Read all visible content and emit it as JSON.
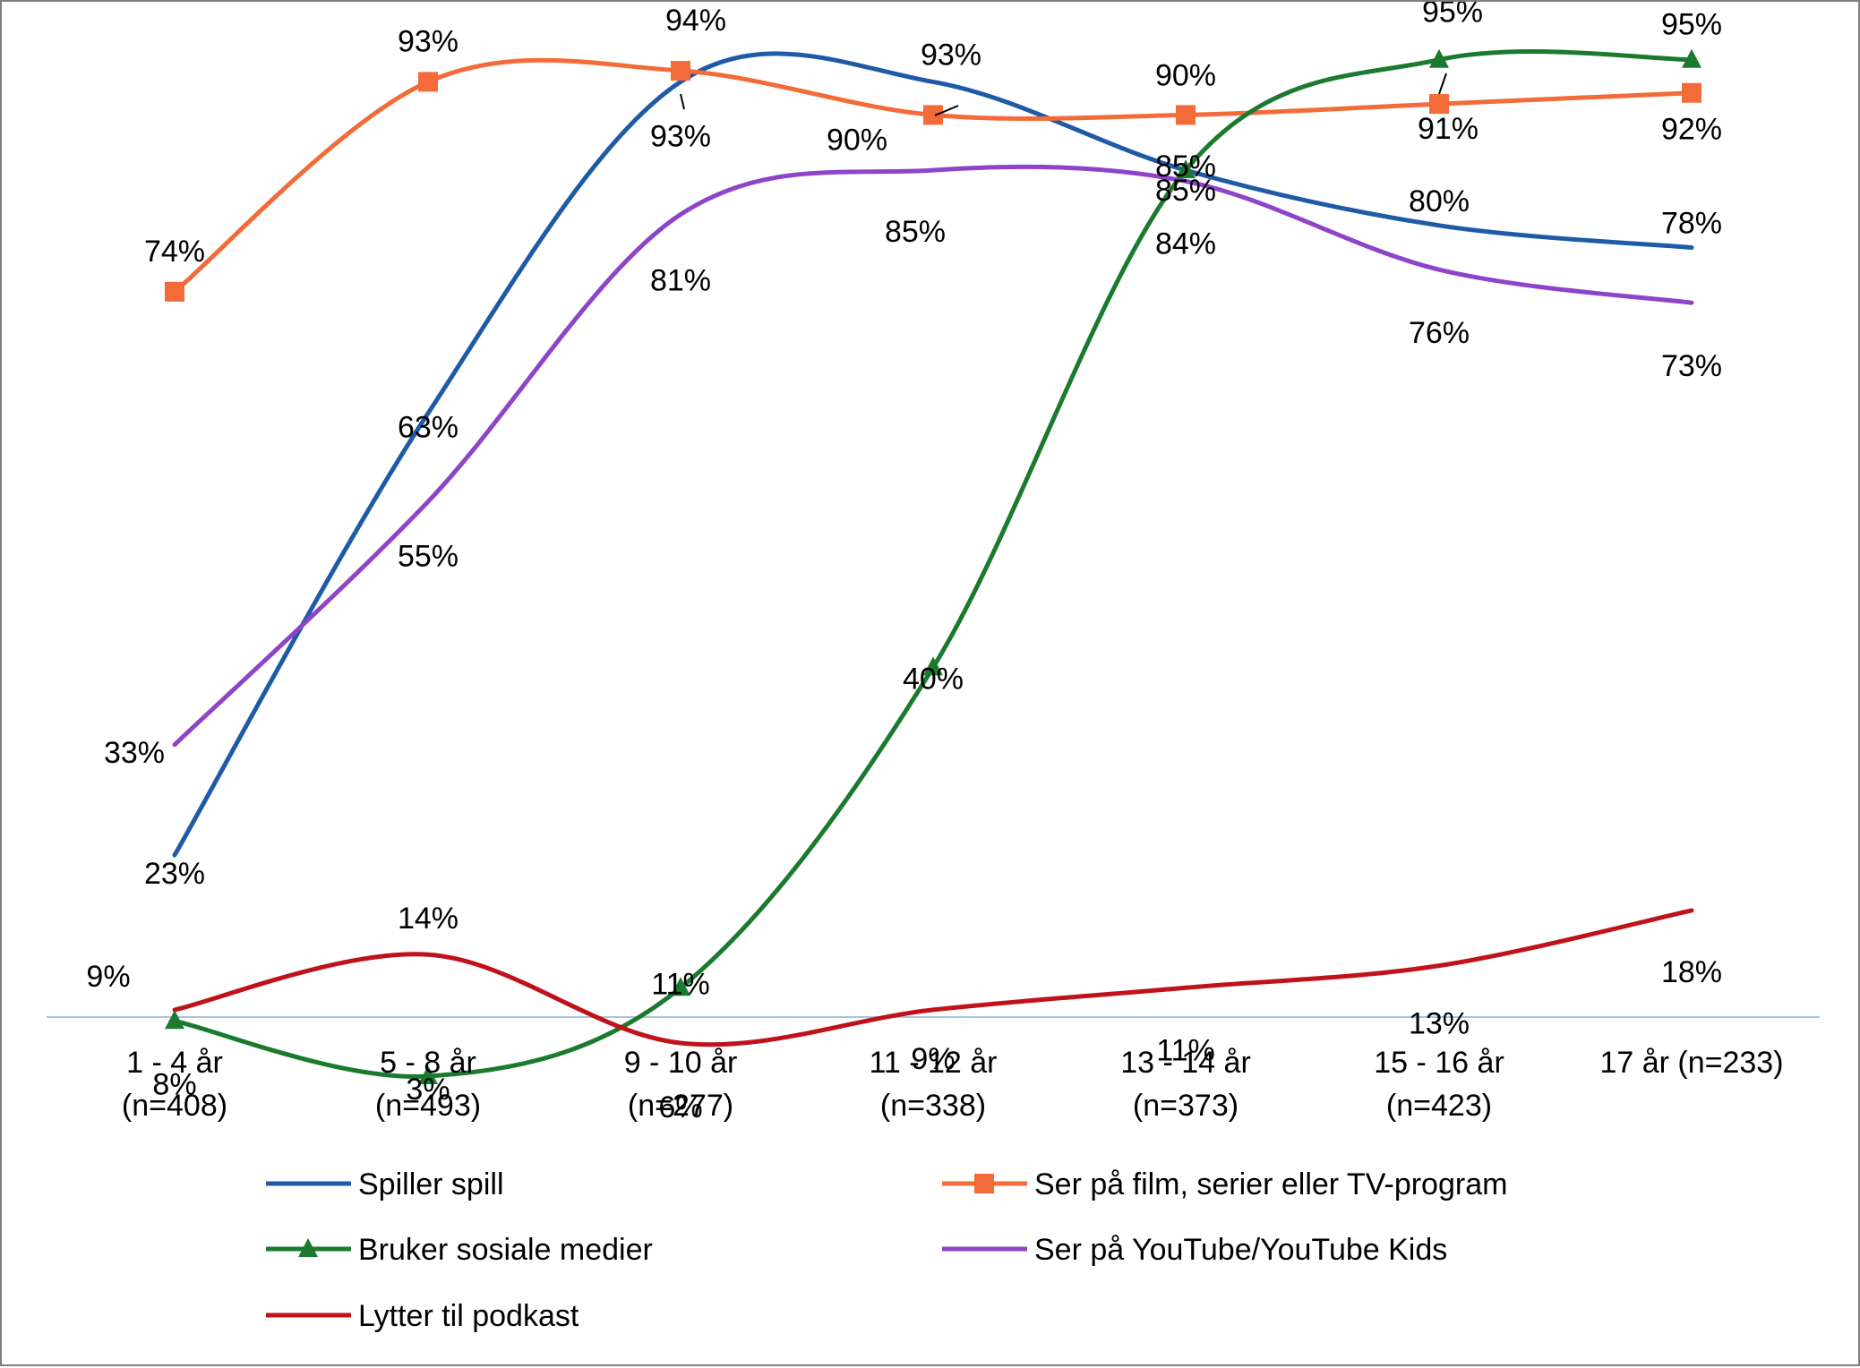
{
  "chart_data": {
    "type": "line",
    "title": "",
    "xlabel": "",
    "ylabel": "",
    "ylim": [
      0,
      100
    ],
    "grid": false,
    "legend_position": "bottom",
    "smooth": true,
    "categories": [
      [
        "1 - 4 år",
        "(n=408)"
      ],
      [
        "5 - 8 år",
        "(n=493)"
      ],
      [
        "9 - 10 år",
        "(n=277)"
      ],
      [
        "11 - 12 år",
        "(n=338)"
      ],
      [
        "13 - 14 år",
        "(n=373)"
      ],
      [
        "15 - 16 år",
        "(n=423)"
      ],
      [
        "17 år (n=233)"
      ]
    ],
    "series": [
      {
        "name": "Spiller spill",
        "color": "#1f5aa6",
        "marker": "none",
        "values": [
          23,
          63,
          93,
          93,
          85,
          80,
          78
        ],
        "labels": [
          "23%",
          "63%",
          "93%",
          "93%",
          "85%",
          "80%",
          "78%"
        ]
      },
      {
        "name": "Ser på film, serier eller TV-program",
        "color": "#f26b38",
        "marker": "square",
        "values": [
          74,
          93,
          94,
          90,
          90,
          91,
          92
        ],
        "labels": [
          "74%",
          "93%",
          "94%",
          "90%",
          "90%",
          "91%",
          "92%"
        ]
      },
      {
        "name": "Bruker sosiale medier",
        "color": "#1a7a2e",
        "marker": "triangle",
        "values": [
          8,
          3,
          11,
          40,
          85,
          95,
          95
        ],
        "labels": [
          "8%",
          "3%",
          "11%",
          "40%",
          "85%",
          "95%",
          "95%"
        ]
      },
      {
        "name": "Ser på YouTube/YouTube Kids",
        "color": "#8e44c9",
        "marker": "none",
        "values": [
          33,
          55,
          81,
          85,
          84,
          76,
          73
        ],
        "labels": [
          "33%",
          "55%",
          "81%",
          "85%",
          "84%",
          "76%",
          "73%"
        ]
      },
      {
        "name": "Lytter til podkast",
        "color": "#c0121a",
        "marker": "none",
        "values": [
          9,
          14,
          6,
          9,
          11,
          13,
          18
        ],
        "labels": [
          "9%",
          "14%",
          "6%",
          "9%",
          "11%",
          "13%",
          "18%"
        ]
      }
    ]
  }
}
